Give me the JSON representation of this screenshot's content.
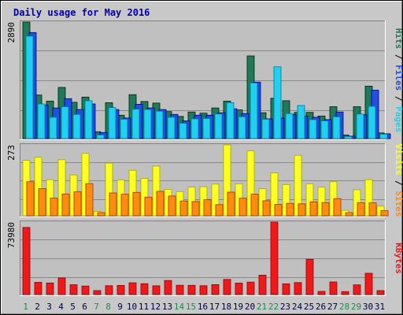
{
  "title": "Daily usage for May 2016",
  "colors": {
    "background": "#c8c8c8",
    "plot_bg": "#c0c0c0",
    "title": "#0000b0",
    "hits": "#1e7a5a",
    "files": "#2050e0",
    "pages": "#20d0f0",
    "visits": "#ffff20",
    "sites": "#ff8c10",
    "kbytes": "#f01818",
    "weekend_day": "#1e8a50",
    "weekday": "#000040"
  },
  "chart_data": [
    {
      "type": "bar",
      "panel": "hits-files-pages",
      "categories": [
        "1",
        "2",
        "3",
        "4",
        "5",
        "6",
        "7",
        "8",
        "9",
        "10",
        "11",
        "12",
        "13",
        "14",
        "15",
        "16",
        "17",
        "18",
        "19",
        "20",
        "21",
        "22",
        "23",
        "24",
        "25",
        "26",
        "27",
        "28",
        "29",
        "30",
        "31"
      ],
      "weekend_days": [
        "1",
        "7",
        "8",
        "14",
        "15",
        "21",
        "22",
        "28",
        "29"
      ],
      "ylim": [
        0,
        2890
      ],
      "y_tick_label": "2890",
      "right_label_parts": [
        "Hits",
        "Files",
        "Pages"
      ],
      "series": [
        {
          "name": "Hits",
          "color": "#1e7a5a",
          "values": [
            2890,
            1080,
            930,
            1270,
            900,
            1030,
            170,
            890,
            580,
            1090,
            920,
            880,
            670,
            550,
            660,
            630,
            760,
            930,
            710,
            2050,
            640,
            1000,
            940,
            650,
            650,
            560,
            790,
            90,
            790,
            1300,
            140
          ]
        },
        {
          "name": "Files",
          "color": "#2050e0",
          "values": [
            2630,
            830,
            760,
            990,
            720,
            860,
            150,
            720,
            510,
            850,
            760,
            720,
            600,
            440,
            580,
            580,
            640,
            740,
            620,
            1400,
            490,
            510,
            600,
            560,
            530,
            470,
            660,
            60,
            590,
            1200,
            120
          ]
        },
        {
          "name": "Pages",
          "color": "#20d0f0",
          "values": [
            2540,
            860,
            530,
            790,
            600,
            940,
            90,
            770,
            480,
            730,
            720,
            680,
            530,
            380,
            490,
            500,
            610,
            890,
            540,
            1380,
            480,
            1780,
            620,
            820,
            470,
            440,
            540,
            50,
            610,
            800,
            110
          ]
        }
      ]
    },
    {
      "type": "bar",
      "panel": "visits-sites",
      "categories": [
        "1",
        "2",
        "3",
        "4",
        "5",
        "6",
        "7",
        "8",
        "9",
        "10",
        "11",
        "12",
        "13",
        "14",
        "15",
        "16",
        "17",
        "18",
        "19",
        "20",
        "21",
        "22",
        "23",
        "24",
        "25",
        "26",
        "27",
        "28",
        "29",
        "30",
        "31"
      ],
      "ylim": [
        0,
        273
      ],
      "y_tick_label": "273",
      "right_label_parts": [
        "Visits",
        "Sites"
      ],
      "series": [
        {
          "name": "Visits",
          "color": "#ffff20",
          "values": [
            214,
            225,
            139,
            216,
            157,
            240,
            17,
            203,
            138,
            175,
            144,
            191,
            102,
            93,
            110,
            112,
            122,
            273,
            123,
            250,
            104,
            165,
            120,
            233,
            123,
            110,
            131,
            21,
            100,
            139,
            37
          ]
        },
        {
          "name": "Sites",
          "color": "#ff8c10",
          "values": [
            131,
            105,
            68,
            84,
            93,
            124,
            12,
            88,
            83,
            90,
            72,
            94,
            76,
            57,
            55,
            62,
            43,
            91,
            68,
            83,
            58,
            44,
            48,
            46,
            54,
            51,
            66,
            12,
            50,
            50,
            20
          ]
        }
      ]
    },
    {
      "type": "bar",
      "panel": "kbytes",
      "categories": [
        "1",
        "2",
        "3",
        "4",
        "5",
        "6",
        "7",
        "8",
        "9",
        "10",
        "11",
        "12",
        "13",
        "14",
        "15",
        "16",
        "17",
        "18",
        "19",
        "20",
        "21",
        "22",
        "23",
        "24",
        "25",
        "26",
        "27",
        "28",
        "29",
        "30",
        "31"
      ],
      "ylim": [
        0,
        73980
      ],
      "y_tick_label": "73980",
      "right_label_parts": [
        "KBytes"
      ],
      "series": [
        {
          "name": "KBytes",
          "color": "#f01818",
          "values": [
            68500,
            12500,
            11800,
            17000,
            10000,
            8700,
            4000,
            9000,
            9300,
            12000,
            11100,
            8900,
            14300,
            9500,
            9400,
            9000,
            10100,
            15400,
            11700,
            12700,
            19800,
            73980,
            10900,
            12200,
            36000,
            3200,
            12900,
            3000,
            9900,
            21700,
            4000
          ]
        }
      ]
    }
  ]
}
